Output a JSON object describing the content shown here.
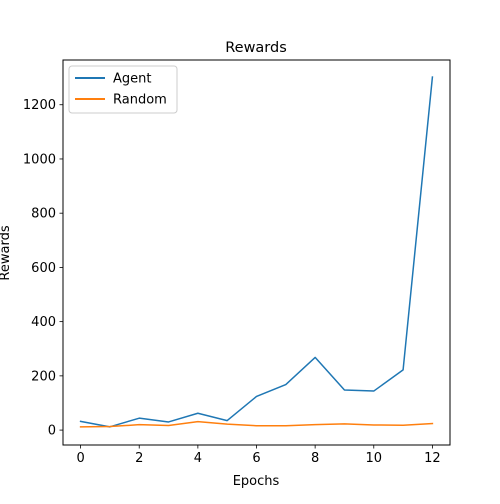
{
  "chart_data": {
    "type": "line",
    "title": "Rewards",
    "xlabel": "Epochs",
    "ylabel": "Rewards",
    "x": [
      0,
      1,
      2,
      3,
      4,
      5,
      6,
      7,
      8,
      9,
      10,
      11,
      12
    ],
    "xlim": [
      -0.6,
      12.6
    ],
    "ylim": [
      -55,
      1365
    ],
    "xticks": [
      0,
      2,
      4,
      6,
      8,
      10,
      12
    ],
    "yticks": [
      0,
      200,
      400,
      600,
      800,
      1000,
      1200
    ],
    "grid": false,
    "legend": "top-left",
    "series": [
      {
        "name": "Agent",
        "color": "#1f77b4",
        "values": [
          32,
          12,
          44,
          30,
          62,
          35,
          124,
          168,
          268,
          148,
          144,
          222,
          1302
        ]
      },
      {
        "name": "Random",
        "color": "#ff7f0e",
        "values": [
          12,
          13,
          20,
          17,
          31,
          22,
          16,
          16,
          20,
          23,
          19,
          18,
          24
        ]
      }
    ]
  }
}
